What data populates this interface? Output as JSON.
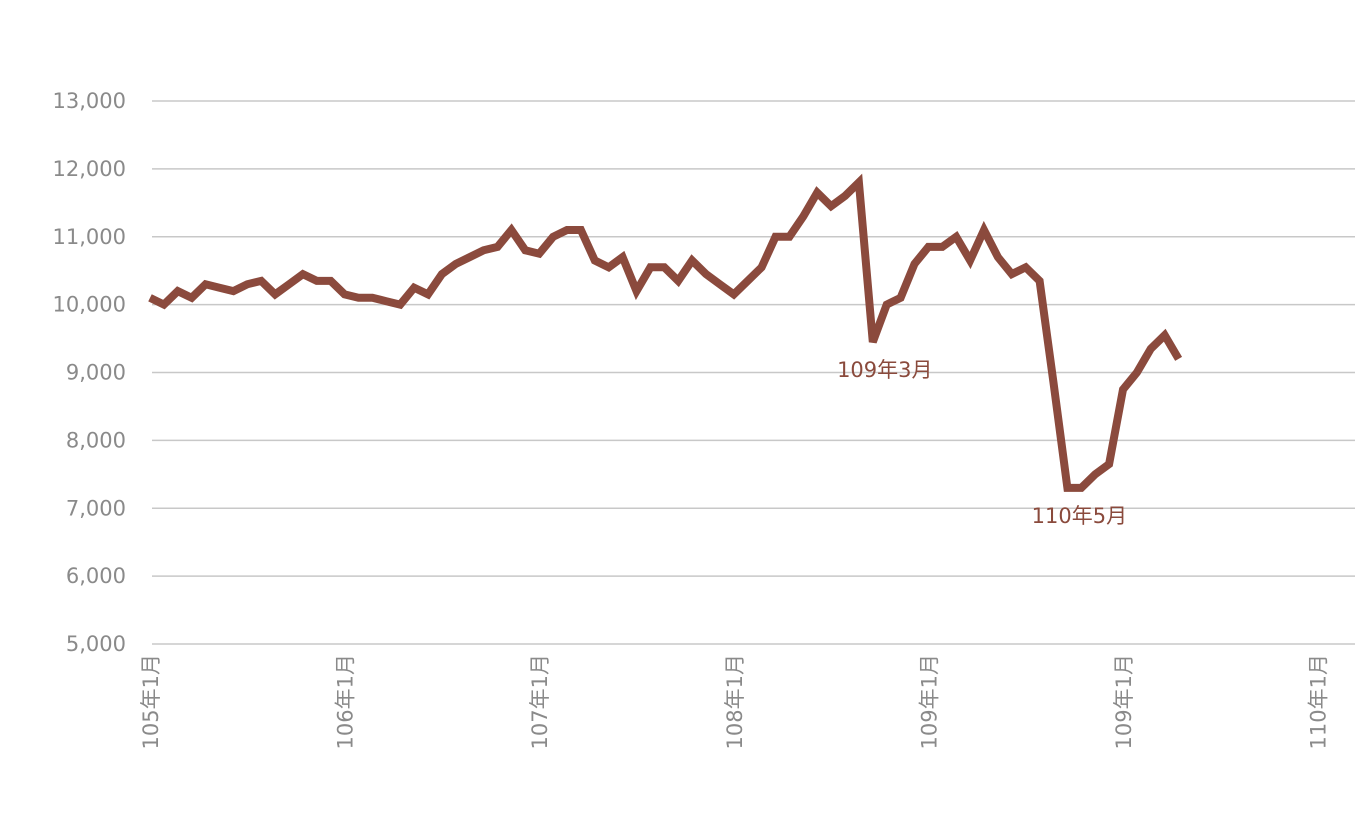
{
  "chart_data": {
    "type": "line",
    "title": "",
    "xlabel": "",
    "ylabel": "",
    "ylim": [
      5000,
      13000
    ],
    "yticks": [
      5000,
      6000,
      7000,
      8000,
      9000,
      10000,
      11000,
      12000,
      13000
    ],
    "ytick_labels": [
      "5,000",
      "6,000",
      "7,000",
      "8,000",
      "9,000",
      "10,000",
      "11,000",
      "12,000",
      "13,000"
    ],
    "grid": true,
    "xticks": [
      {
        "label": "105年1月",
        "index": 0
      },
      {
        "label": "106年1月",
        "index": 14
      },
      {
        "label": "107年1月",
        "index": 28
      },
      {
        "label": "108年1月",
        "index": 42
      },
      {
        "label": "109年1月",
        "index": 56
      },
      {
        "label": "109年1月",
        "index": 70
      },
      {
        "label": "110年1月",
        "index": 84
      }
    ],
    "color": "#8b4a3d",
    "series": [
      {
        "values": [
          10100,
          10000,
          10200,
          10100,
          10300,
          10250,
          10200,
          10300,
          10350,
          10150,
          10300,
          10450,
          10350,
          10350,
          10150,
          10100,
          10100,
          10050,
          10000,
          10250,
          10150,
          10450,
          10600,
          10700,
          10800,
          10850,
          11100,
          10800,
          10750,
          11000,
          11100,
          11100,
          10650,
          10550,
          10700,
          10200,
          10550,
          10550,
          10350,
          10650,
          10450,
          10300,
          10150,
          10350,
          10550,
          11000,
          11000,
          11300,
          11650,
          11450,
          11600,
          11800,
          9450,
          10000,
          10100,
          10600,
          10850,
          10850,
          11000,
          10650,
          11100,
          10700,
          10450,
          10550,
          10350,
          8850,
          7300,
          7300,
          7500,
          7650,
          8750,
          9000,
          9350,
          9550,
          9200
        ]
      }
    ],
    "annotations": [
      {
        "text": "109年3月",
        "index": 52
      },
      {
        "text": "110年5月",
        "index": 66
      }
    ]
  }
}
